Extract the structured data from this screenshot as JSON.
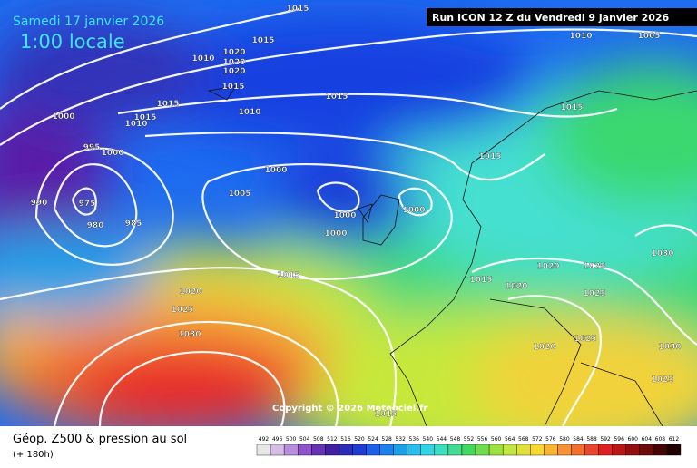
{
  "header": {
    "date": "Samedi 17 janvier 2026",
    "time": "1:00 locale",
    "run": "Run ICON 12 Z du Vendredi 9 janvier 2026"
  },
  "map": {
    "copyright": "Copyright © 2026 Meteociel.fr",
    "isobar_labels": [
      1015,
      1015,
      1010,
      1020,
      1020,
      1020,
      1015,
      1015,
      1010,
      1015,
      1015,
      1010,
      1000,
      995,
      1000,
      990,
      975,
      980,
      985,
      1000,
      1005,
      1000,
      1000,
      1000,
      1015,
      1020,
      1025,
      1030,
      1010,
      1005,
      1015,
      1015,
      1015,
      1020,
      1020,
      1025,
      1025,
      1025,
      1030,
      1030,
      1025,
      1020,
      1015
    ]
  },
  "footer": {
    "title": "Géop. Z500 & pression au sol",
    "lead": "(+ 180h)",
    "scale": [
      492,
      496,
      500,
      504,
      508,
      512,
      516,
      520,
      524,
      528,
      532,
      536,
      540,
      544,
      548,
      552,
      556,
      560,
      564,
      568,
      572,
      576,
      580,
      584,
      588,
      592,
      596,
      600,
      604,
      608,
      612
    ]
  }
}
